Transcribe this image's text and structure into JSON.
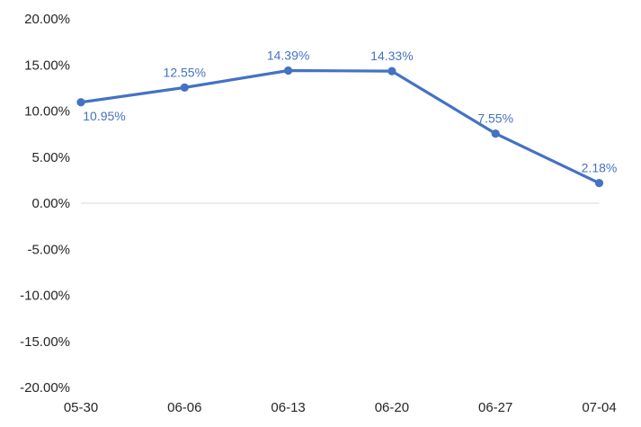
{
  "chart_data": {
    "type": "line",
    "categories": [
      "05-30",
      "06-06",
      "06-13",
      "06-20",
      "06-27",
      "07-04"
    ],
    "values": [
      10.95,
      12.55,
      14.39,
      14.33,
      7.55,
      2.18
    ],
    "data_labels": [
      "10.95%",
      "12.55%",
      "14.39%",
      "14.33%",
      "7.55%",
      "2.18%"
    ],
    "y_ticks": [
      "20.00%",
      "15.00%",
      "10.00%",
      "5.00%",
      "0.00%",
      "-5.00%",
      "-10.00%",
      "-15.00%",
      "-20.00%"
    ],
    "ylim": [
      -20,
      20
    ],
    "grid": false,
    "zero_line": true,
    "line_color": "#4472C4",
    "title": "",
    "xlabel": "",
    "ylabel": ""
  }
}
